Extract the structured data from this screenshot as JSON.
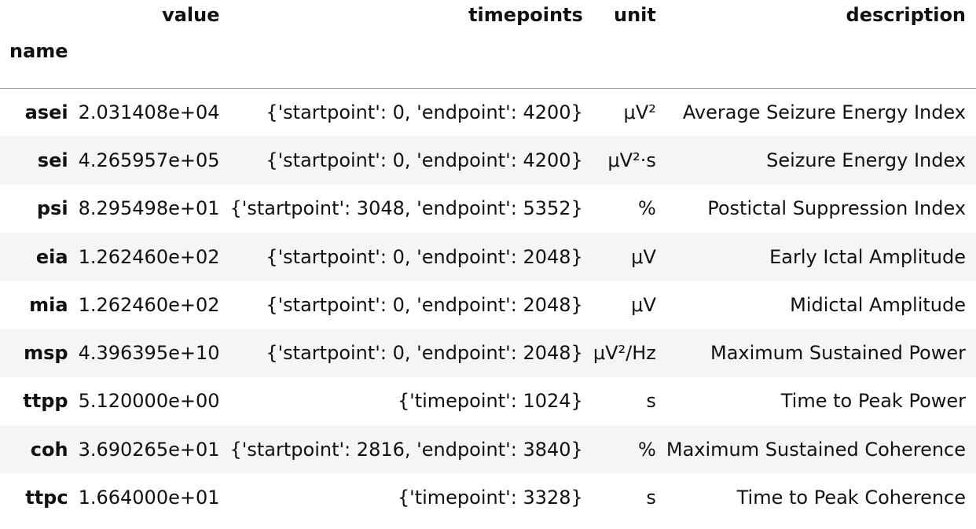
{
  "table": {
    "index_name": "name",
    "columns": [
      "value",
      "timepoints",
      "unit",
      "description"
    ],
    "rows": [
      {
        "name": "asei",
        "value": "2.031408e+04",
        "timepoints": "{'startpoint': 0, 'endpoint': 4200}",
        "unit": "μV²",
        "description": "Average Seizure Energy Index"
      },
      {
        "name": "sei",
        "value": "4.265957e+05",
        "timepoints": "{'startpoint': 0, 'endpoint': 4200}",
        "unit": "μV²·s",
        "description": "Seizure Energy Index"
      },
      {
        "name": "psi",
        "value": "8.295498e+01",
        "timepoints": "{'startpoint': 3048, 'endpoint': 5352}",
        "unit": "%",
        "description": "Postictal Suppression Index"
      },
      {
        "name": "eia",
        "value": "1.262460e+02",
        "timepoints": "{'startpoint': 0, 'endpoint': 2048}",
        "unit": "μV",
        "description": "Early Ictal Amplitude"
      },
      {
        "name": "mia",
        "value": "1.262460e+02",
        "timepoints": "{'startpoint': 0, 'endpoint': 2048}",
        "unit": "μV",
        "description": "Midictal Amplitude"
      },
      {
        "name": "msp",
        "value": "4.396395e+10",
        "timepoints": "{'startpoint': 0, 'endpoint': 2048}",
        "unit": "μV²/Hz",
        "description": "Maximum Sustained Power"
      },
      {
        "name": "ttpp",
        "value": "5.120000e+00",
        "timepoints": "{'timepoint': 1024}",
        "unit": "s",
        "description": "Time to Peak Power"
      },
      {
        "name": "coh",
        "value": "3.690265e+01",
        "timepoints": "{'startpoint': 2816, 'endpoint': 3840}",
        "unit": "%",
        "description": "Maximum Sustained Coherence"
      },
      {
        "name": "ttpc",
        "value": "1.664000e+01",
        "timepoints": "{'timepoint': 3328}",
        "unit": "s",
        "description": "Time to Peak Coherence"
      }
    ]
  }
}
